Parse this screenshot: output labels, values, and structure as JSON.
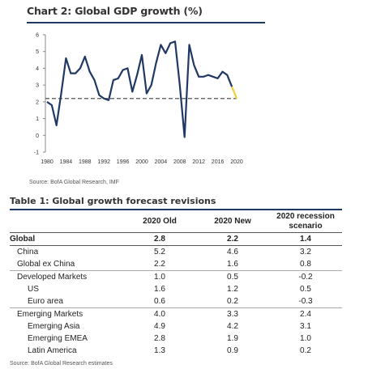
{
  "chart_title": "Chart 2: Global GDP growth (%)",
  "chart_source": "Source: BofA Global Research, IMF",
  "colors": {
    "line": "#1f3864",
    "projection": "#f5d033",
    "dashed": "#555555",
    "rule": "#1f3864"
  },
  "chart_data": {
    "type": "line",
    "title": "Chart 2: Global GDP growth (%)",
    "xlabel": "",
    "ylabel": "",
    "xlim": [
      1980,
      2020
    ],
    "ylim": [
      -1,
      6
    ],
    "xticks": [
      "1980",
      "1984",
      "1988",
      "1992",
      "1996",
      "2000",
      "2004",
      "2008",
      "2012",
      "2016",
      "2020"
    ],
    "yticks": [
      "-1",
      "0",
      "1",
      "2",
      "3",
      "4",
      "5",
      "6"
    ],
    "reference_line": 2.2,
    "series": [
      {
        "x": [
          1980,
          1981,
          1982,
          1983,
          1984,
          1985,
          1986,
          1987,
          1988,
          1989,
          1990,
          1991,
          1992,
          1993,
          1994,
          1995,
          1996,
          1997,
          1998,
          1999,
          2000,
          2001,
          2002,
          2003,
          2004,
          2005,
          2006,
          2007,
          2008,
          2009,
          2010,
          2011,
          2012,
          2013,
          2014,
          2015,
          2016,
          2017,
          2018,
          2019
        ],
        "values": [
          2.0,
          1.8,
          0.6,
          2.5,
          4.6,
          3.7,
          3.7,
          4.0,
          4.7,
          3.8,
          3.3,
          2.4,
          2.2,
          2.1,
          3.3,
          3.4,
          3.9,
          4.0,
          2.6,
          3.6,
          4.8,
          2.5,
          3.0,
          4.3,
          5.4,
          4.9,
          5.5,
          5.6,
          3.0,
          -0.1,
          5.4,
          4.2,
          3.5,
          3.5,
          3.6,
          3.5,
          3.4,
          3.8,
          3.6,
          2.9
        ]
      },
      {
        "x": [
          2019,
          2020
        ],
        "values": [
          2.9,
          2.2
        ]
      }
    ],
    "grid": false,
    "legend": "none"
  },
  "table": {
    "title": "Table 1: Global growth forecast revisions",
    "headers": [
      "",
      "2020 Old",
      "2020 New",
      "2020 recession scenario"
    ],
    "groups": [
      {
        "rows": [
          {
            "label": "Global",
            "values": [
              "2.8",
              "2.2",
              "1.4"
            ],
            "bold": true,
            "indent": 0
          },
          {
            "label": "China",
            "values": [
              "5.2",
              "4.6",
              "3.2"
            ],
            "bold": false,
            "indent": 1
          },
          {
            "label": "Global ex China",
            "values": [
              "2.2",
              "1.6",
              "0.8"
            ],
            "bold": false,
            "indent": 1
          }
        ]
      },
      {
        "rows": [
          {
            "label": "Developed Markets",
            "values": [
              "1.0",
              "0.5",
              "-0.2"
            ],
            "bold": false,
            "indent": 1
          },
          {
            "label": "US",
            "values": [
              "1.6",
              "1.2",
              "0.5"
            ],
            "bold": false,
            "indent": 2
          },
          {
            "label": "Euro area",
            "values": [
              "0.6",
              "0.2",
              "-0.3"
            ],
            "bold": false,
            "indent": 2
          }
        ]
      },
      {
        "rows": [
          {
            "label": "Emerging Markets",
            "values": [
              "4.0",
              "3.3",
              "2.4"
            ],
            "bold": false,
            "indent": 1
          },
          {
            "label": "Emerging Asia",
            "values": [
              "4.9",
              "4.2",
              "3.1"
            ],
            "bold": false,
            "indent": 2
          },
          {
            "label": "Emerging EMEA",
            "values": [
              "2.8",
              "1.9",
              "1.0"
            ],
            "bold": false,
            "indent": 2
          },
          {
            "label": "Latin America",
            "values": [
              "1.3",
              "0.9",
              "0.2"
            ],
            "bold": false,
            "indent": 2
          }
        ]
      }
    ],
    "source": "Source: BofA Global Research estimates"
  }
}
